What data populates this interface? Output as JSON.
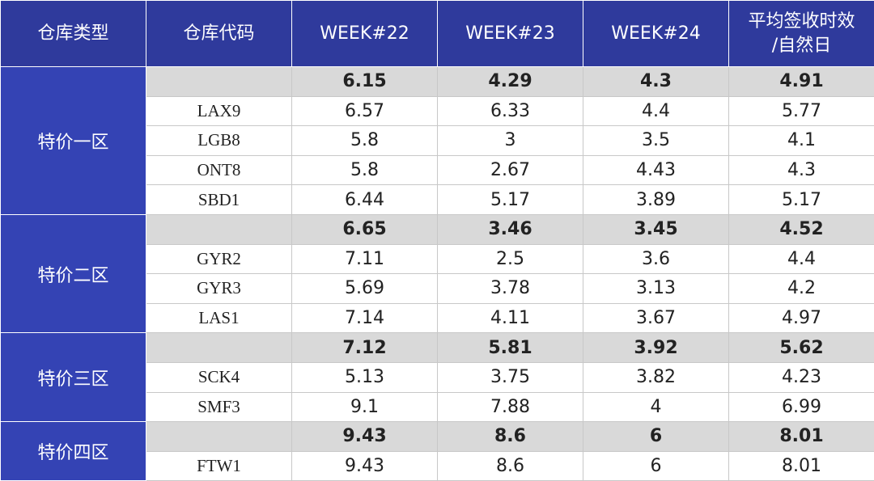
{
  "table": {
    "header": [
      "仓库类型",
      "仓库代码",
      "WEEK#22",
      "WEEK#23",
      "WEEK#24",
      [
        "平均签收时效",
        "/自然日"
      ]
    ],
    "groups": [
      {
        "name": "特价一区",
        "summary": [
          6.15,
          4.29,
          4.3,
          4.91
        ],
        "rows": [
          {
            "code": "LAX9",
            "values": [
              6.57,
              6.33,
              4.4,
              5.77
            ]
          },
          {
            "code": "LGB8",
            "values": [
              5.8,
              3,
              3.5,
              4.1
            ]
          },
          {
            "code": "ONT8",
            "values": [
              5.8,
              2.67,
              4.43,
              4.3
            ]
          },
          {
            "code": "SBD1",
            "values": [
              6.44,
              5.17,
              3.89,
              5.17
            ]
          }
        ]
      },
      {
        "name": "特价二区",
        "summary": [
          6.65,
          3.46,
          3.45,
          4.52
        ],
        "rows": [
          {
            "code": "GYR2",
            "values": [
              7.11,
              2.5,
              3.6,
              4.4
            ]
          },
          {
            "code": "GYR3",
            "values": [
              5.69,
              3.78,
              3.13,
              4.2
            ]
          },
          {
            "code": "LAS1",
            "values": [
              7.14,
              4.11,
              3.67,
              4.97
            ]
          }
        ]
      },
      {
        "name": "特价三区",
        "summary": [
          7.12,
          5.81,
          3.92,
          5.62
        ],
        "rows": [
          {
            "code": "SCK4",
            "values": [
              5.13,
              3.75,
              3.82,
              4.23
            ]
          },
          {
            "code": "SMF3",
            "values": [
              9.1,
              7.88,
              4,
              6.99
            ]
          }
        ]
      },
      {
        "name": "特价四区",
        "summary": [
          9.43,
          8.6,
          6,
          8.01
        ],
        "rows": [
          {
            "code": "FTW1",
            "values": [
              9.43,
              8.6,
              6,
              8.01
            ]
          }
        ]
      }
    ]
  }
}
